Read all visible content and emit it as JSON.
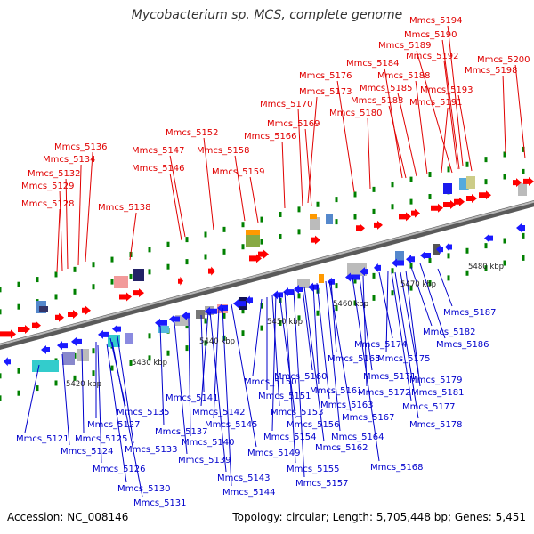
{
  "title": "Mycobacterium sp. MCS, complete genome",
  "footer": {
    "accession": "Accession: NC_008146",
    "stats": "Topology: circular; Length: 5,705,448 bp; Genes: 5,451"
  },
  "colors": {
    "upper_labels": "#e00000",
    "lower_labels": "#0000cc",
    "genome_line": "#888888",
    "forward_genes": "#ff0000",
    "reverse_genes": "#1a1aff",
    "tick_marks": "#008000"
  },
  "scale_labels": [
    "5420 kbp",
    "5430 kbp",
    "5440 kbp",
    "5450 kbp",
    "5460 kbp",
    "5470 kbp",
    "5480 kbp"
  ],
  "upper_labels": [
    "Mmcs_5194",
    "Mmcs_5190",
    "Mmcs_5189",
    "Mmcs_5192",
    "Mmcs_5200",
    "Mmcs_5198",
    "Mmcs_5184",
    "Mmcs_5188",
    "Mmcs_5176",
    "Mmcs_5185",
    "Mmcs_5193",
    "Mmcs_5173",
    "Mmcs_5183",
    "Mmcs_5191",
    "Mmcs_5170",
    "Mmcs_5180",
    "Mmcs_5169",
    "Mmcs_5152",
    "Mmcs_5166",
    "Mmcs_5136",
    "Mmcs_5147",
    "Mmcs_5158",
    "Mmcs_5134",
    "Mmcs_5146",
    "Mmcs_5159",
    "Mmcs_5132",
    "Mmcs_5129",
    "Mmcs_5128",
    "Mmcs_5138"
  ],
  "lower_labels": [
    "Mmcs_5187",
    "Mmcs_5182",
    "Mmcs_5186",
    "Mmcs_5174",
    "Mmcs_5175",
    "Mmcs_5165",
    "Mmcs_5179",
    "Mmcs_5160",
    "Mmcs_5171",
    "Mmcs_5181",
    "Mmcs_5150",
    "Mmcs_5161",
    "Mmcs_5172",
    "Mmcs_5141",
    "Mmcs_5151",
    "Mmcs_5163",
    "Mmcs_5177",
    "Mmcs_5142",
    "Mmcs_5153",
    "Mmcs_5135",
    "Mmcs_5145",
    "Mmcs_5156",
    "Mmcs_5167",
    "Mmcs_5178",
    "Mmcs_5127",
    "Mmcs_5137",
    "Mmcs_5154",
    "Mmcs_5164",
    "Mmcs_5121",
    "Mmcs_5125",
    "Mmcs_5140",
    "Mmcs_5162",
    "Mmcs_5124",
    "Mmcs_5133",
    "Mmcs_5149",
    "Mmcs_5139",
    "Mmcs_5168",
    "Mmcs_5126",
    "Mmcs_5155",
    "Mmcs_5143",
    "Mmcs_5157",
    "Mmcs_5130",
    "Mmcs_5144",
    "Mmcs_5131"
  ]
}
